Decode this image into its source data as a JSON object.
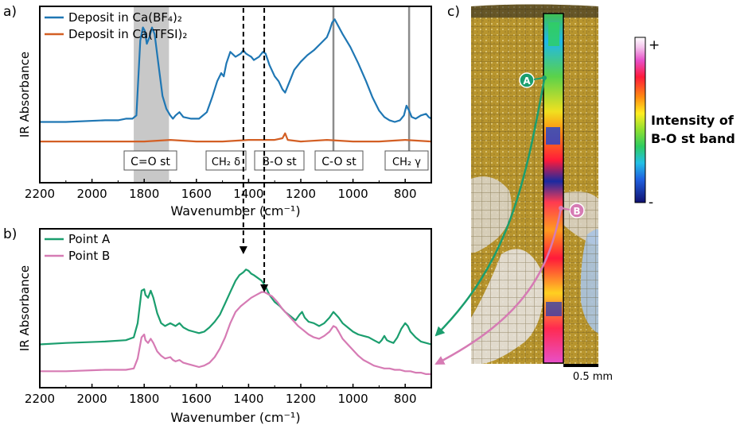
{
  "colors": {
    "ca_bf4": "#1f77b4",
    "ca_tfsi": "#d35f24",
    "point_a": "#1b9e6e",
    "point_b": "#d67bb4",
    "band_region": "#c8c8c8",
    "vline": "#8c8c8c"
  },
  "panel_labels": {
    "a": "a)",
    "b": "b)",
    "c": "c)"
  },
  "chart_data": [
    {
      "type": "line",
      "panel": "a",
      "xlabel": "Wavenumber (cm⁻¹)",
      "ylabel": "IR Absorbance",
      "xlim": [
        2200,
        700
      ],
      "x_reversed": true,
      "xticks": [
        2200,
        2000,
        1800,
        1600,
        1400,
        1200,
        1000,
        800
      ],
      "ylim": [
        0,
        1
      ],
      "legend": "top-left",
      "highlight_band": [
        1840,
        1705
      ],
      "band_labels": [
        "C=O st",
        "CH₂ δ",
        "B-O st",
        "C-O st",
        "CH₂ γ"
      ],
      "reference_lines": [
        1075,
        785
      ],
      "dashed_lines": [
        1420,
        1340
      ],
      "series": [
        {
          "name": "Deposit in Ca(BF₄)₂",
          "x": [
            2200,
            2100,
            1950,
            1900,
            1870,
            1845,
            1830,
            1815,
            1805,
            1798,
            1790,
            1780,
            1770,
            1760,
            1745,
            1730,
            1715,
            1700,
            1690,
            1680,
            1665,
            1650,
            1620,
            1590,
            1560,
            1540,
            1520,
            1505,
            1495,
            1485,
            1470,
            1450,
            1430,
            1420,
            1410,
            1400,
            1390,
            1380,
            1360,
            1345,
            1335,
            1320,
            1300,
            1285,
            1270,
            1260,
            1250,
            1240,
            1225,
            1200,
            1175,
            1150,
            1125,
            1100,
            1090,
            1080,
            1070,
            1060,
            1040,
            1010,
            980,
            950,
            925,
            900,
            880,
            860,
            840,
            820,
            805,
            795,
            785,
            775,
            760,
            740,
            720,
            710,
            700
          ],
          "y": [
            0.3,
            0.3,
            0.31,
            0.31,
            0.32,
            0.32,
            0.34,
            0.8,
            0.88,
            0.86,
            0.78,
            0.82,
            0.88,
            0.84,
            0.65,
            0.46,
            0.38,
            0.34,
            0.32,
            0.34,
            0.36,
            0.33,
            0.32,
            0.32,
            0.36,
            0.45,
            0.55,
            0.6,
            0.58,
            0.66,
            0.73,
            0.7,
            0.72,
            0.74,
            0.72,
            0.71,
            0.7,
            0.68,
            0.7,
            0.73,
            0.72,
            0.65,
            0.58,
            0.55,
            0.5,
            0.48,
            0.52,
            0.56,
            0.62,
            0.67,
            0.71,
            0.74,
            0.78,
            0.82,
            0.86,
            0.91,
            0.93,
            0.9,
            0.84,
            0.76,
            0.66,
            0.55,
            0.45,
            0.37,
            0.33,
            0.31,
            0.3,
            0.31,
            0.34,
            0.4,
            0.37,
            0.33,
            0.32,
            0.34,
            0.35,
            0.33,
            0.32
          ]
        },
        {
          "name": "Deposit in Ca(TFSI)₂",
          "x": [
            2200,
            2000,
            1800,
            1700,
            1600,
            1500,
            1400,
            1300,
            1270,
            1260,
            1250,
            1200,
            1100,
            1000,
            900,
            800,
            700
          ],
          "y": [
            0.18,
            0.18,
            0.18,
            0.19,
            0.18,
            0.18,
            0.19,
            0.19,
            0.2,
            0.23,
            0.19,
            0.18,
            0.19,
            0.18,
            0.18,
            0.19,
            0.18
          ]
        }
      ]
    },
    {
      "type": "line",
      "panel": "b",
      "xlabel": "Wavenumber (cm⁻¹)",
      "ylabel": "IR Absorbance",
      "xlim": [
        2200,
        700
      ],
      "x_reversed": true,
      "xticks": [
        2200,
        2000,
        1800,
        1600,
        1400,
        1200,
        1000,
        800
      ],
      "ylim": [
        0,
        1
      ],
      "legend": "top-left",
      "series": [
        {
          "name": "Point A",
          "x": [
            2200,
            2100,
            1950,
            1870,
            1840,
            1825,
            1810,
            1800,
            1795,
            1785,
            1775,
            1765,
            1750,
            1735,
            1720,
            1700,
            1690,
            1680,
            1665,
            1650,
            1630,
            1610,
            1590,
            1570,
            1550,
            1530,
            1510,
            1490,
            1470,
            1450,
            1435,
            1420,
            1410,
            1400,
            1390,
            1380,
            1365,
            1350,
            1335,
            1320,
            1300,
            1280,
            1260,
            1240,
            1220,
            1205,
            1195,
            1185,
            1170,
            1150,
            1130,
            1110,
            1090,
            1075,
            1065,
            1055,
            1040,
            1020,
            1000,
            980,
            960,
            940,
            920,
            900,
            890,
            880,
            870,
            860,
            845,
            830,
            815,
            800,
            790,
            780,
            760,
            740,
            720,
            700
          ],
          "y": [
            0.25,
            0.26,
            0.27,
            0.28,
            0.3,
            0.4,
            0.63,
            0.64,
            0.6,
            0.58,
            0.63,
            0.58,
            0.47,
            0.4,
            0.38,
            0.4,
            0.39,
            0.38,
            0.4,
            0.37,
            0.35,
            0.34,
            0.33,
            0.34,
            0.37,
            0.41,
            0.46,
            0.54,
            0.62,
            0.7,
            0.74,
            0.76,
            0.78,
            0.77,
            0.75,
            0.74,
            0.72,
            0.7,
            0.66,
            0.6,
            0.55,
            0.52,
            0.48,
            0.45,
            0.42,
            0.46,
            0.48,
            0.44,
            0.41,
            0.4,
            0.38,
            0.4,
            0.44,
            0.48,
            0.46,
            0.44,
            0.4,
            0.37,
            0.34,
            0.32,
            0.31,
            0.3,
            0.28,
            0.26,
            0.28,
            0.31,
            0.28,
            0.27,
            0.26,
            0.3,
            0.36,
            0.4,
            0.38,
            0.34,
            0.3,
            0.27,
            0.26,
            0.25
          ]
        },
        {
          "name": "Point B",
          "x": [
            2200,
            2100,
            1950,
            1870,
            1840,
            1825,
            1810,
            1800,
            1795,
            1785,
            1775,
            1765,
            1750,
            1735,
            1720,
            1700,
            1690,
            1680,
            1665,
            1650,
            1630,
            1610,
            1590,
            1570,
            1550,
            1530,
            1510,
            1490,
            1470,
            1450,
            1430,
            1410,
            1390,
            1370,
            1350,
            1340,
            1330,
            1310,
            1290,
            1270,
            1250,
            1230,
            1210,
            1190,
            1170,
            1150,
            1130,
            1110,
            1090,
            1075,
            1065,
            1055,
            1040,
            1020,
            1000,
            980,
            960,
            940,
            920,
            900,
            880,
            860,
            840,
            820,
            800,
            780,
            760,
            740,
            720,
            700
          ],
          "y": [
            0.06,
            0.06,
            0.07,
            0.07,
            0.08,
            0.15,
            0.3,
            0.32,
            0.28,
            0.26,
            0.29,
            0.26,
            0.2,
            0.17,
            0.15,
            0.16,
            0.14,
            0.13,
            0.14,
            0.12,
            0.11,
            0.1,
            0.09,
            0.1,
            0.12,
            0.16,
            0.22,
            0.3,
            0.4,
            0.48,
            0.52,
            0.55,
            0.58,
            0.6,
            0.62,
            0.62,
            0.61,
            0.59,
            0.55,
            0.5,
            0.46,
            0.42,
            0.38,
            0.35,
            0.32,
            0.3,
            0.29,
            0.31,
            0.34,
            0.38,
            0.37,
            0.34,
            0.29,
            0.25,
            0.21,
            0.17,
            0.14,
            0.12,
            0.1,
            0.09,
            0.08,
            0.08,
            0.07,
            0.07,
            0.06,
            0.06,
            0.05,
            0.05,
            0.04,
            0.04
          ]
        }
      ]
    }
  ],
  "image_panel": {
    "markers": [
      "A",
      "B"
    ],
    "colorbar": {
      "max_label": "+",
      "min_label": "-"
    },
    "intensity_label_line1": "Intensity of",
    "intensity_label_line2": "B-O st band",
    "scalebar_label": "0.5 mm"
  }
}
